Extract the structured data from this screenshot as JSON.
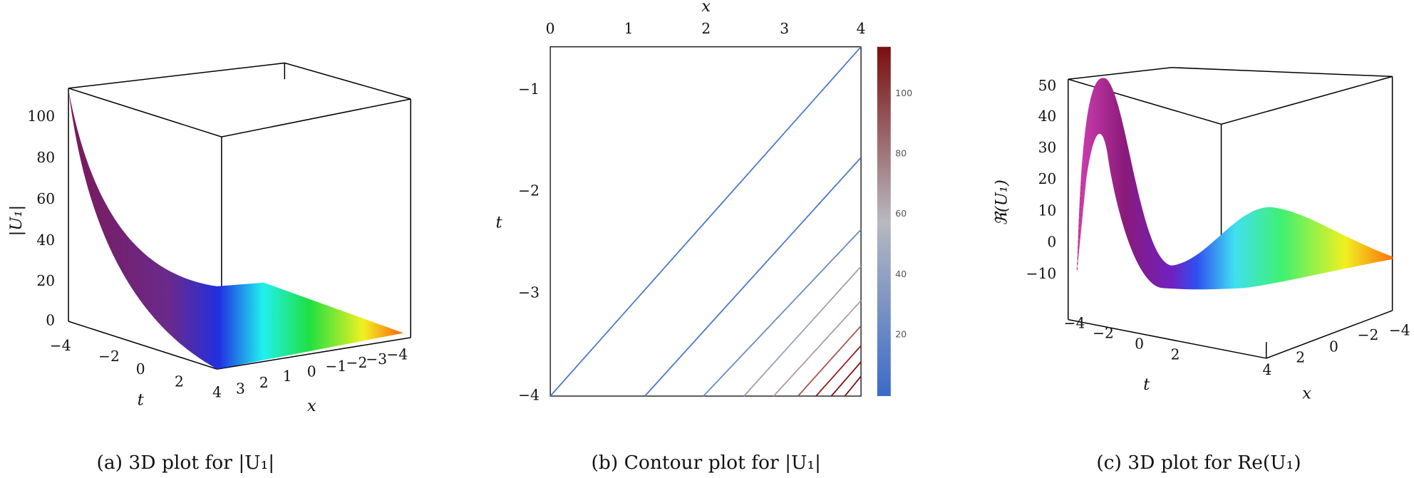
{
  "panels": [
    {
      "caption": "(a) 3D plot for |U₁|",
      "z_label": "|U₁|",
      "t_label": "t",
      "x_label": "x",
      "z_ticks": [
        "0",
        "20",
        "40",
        "60",
        "80",
        "100"
      ],
      "t_ticks": [
        "−4",
        "−2",
        "0",
        "2",
        "4"
      ],
      "x_ticks": [
        "3",
        "2",
        "1",
        "0",
        "−1",
        "−2",
        "−3",
        "−4"
      ]
    },
    {
      "caption": "(b) Contour plot for |U₁|",
      "x_label": "x",
      "t_label": "t",
      "x_ticks": [
        "0",
        "1",
        "2",
        "3",
        "4"
      ],
      "t_ticks": [
        "−1",
        "−2",
        "−3",
        "−4"
      ],
      "colorbar_ticks": [
        "20",
        "40",
        "60",
        "80",
        "100"
      ]
    },
    {
      "caption": "(c) 3D plot for Re(U₁)",
      "z_label": "ℜ(U₁)",
      "t_label": "t",
      "x_label": "x",
      "z_ticks": [
        "50",
        "40",
        "30",
        "20",
        "10",
        "0",
        "−10"
      ],
      "t_ticks": [
        "−4",
        "−2",
        "0",
        "2",
        "4"
      ],
      "x_ticks": [
        "2",
        "0",
        "−2",
        "−4"
      ]
    }
  ]
}
